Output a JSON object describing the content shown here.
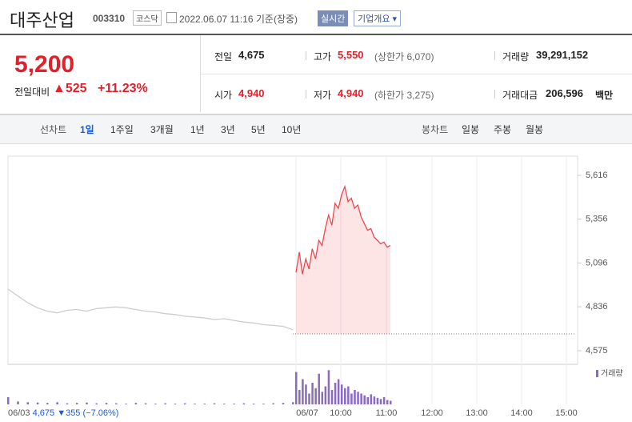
{
  "header": {
    "name": "대주산업",
    "code": "003310",
    "market": "코스닥",
    "time": "2022.06.07 11:16 기준(장중)",
    "realtime": "실시간",
    "overview": "기업개요"
  },
  "price": {
    "current": "5,200",
    "change_label": "전일대비",
    "change": "525",
    "change_pct": "+11.23%"
  },
  "stats": [
    {
      "label": "전일",
      "value": "4,675"
    },
    {
      "label": "고가",
      "value": "5,550",
      "note": "(상한가 6,070)"
    },
    {
      "label": "거래량",
      "value": "39,291,152"
    },
    {
      "label": "시가",
      "value": "4,940"
    },
    {
      "label": "저가",
      "value": "4,940",
      "note": "(하한가 3,275)"
    },
    {
      "label": "거래대금",
      "value": "206,596",
      "unit": "백만"
    }
  ],
  "tabs": {
    "line_label": "선차트",
    "line": [
      "1일",
      "1주일",
      "3개월",
      "1년",
      "3년",
      "5년",
      "10년"
    ],
    "candle_label": "봉차트",
    "candle": [
      "일봉",
      "주봉",
      "월봉"
    ]
  },
  "chart_data": {
    "type": "line",
    "ylim": [
      4575,
      5616
    ],
    "yticks": [
      {
        "value": 5616,
        "label": "5,616"
      },
      {
        "value": 5356,
        "label": "5,356"
      },
      {
        "value": 5096,
        "label": "5,096"
      },
      {
        "value": 4836,
        "label": "4,836"
      },
      {
        "value": 4575,
        "label": "4,575"
      }
    ],
    "x_labels": [
      "06/03",
      "06/07",
      "10:00",
      "11:00",
      "12:00",
      "13:00",
      "14:00",
      "15:00"
    ],
    "prev_close": 4675,
    "series": [
      {
        "name": "06/03",
        "color": "#cccccc",
        "values": [
          4941,
          4900,
          4860,
          4830,
          4810,
          4800,
          4815,
          4820,
          4810,
          4825,
          4830,
          4835,
          4830,
          4820,
          4810,
          4805,
          4795,
          4790,
          4780,
          4775,
          4770,
          4760,
          4765,
          4755,
          4745,
          4740,
          4730,
          4725,
          4720,
          4700
        ]
      },
      {
        "name": "06/07",
        "color": "#f0474f",
        "values": [
          5040,
          5160,
          5030,
          5120,
          5060,
          5180,
          5120,
          5230,
          5200,
          5300,
          5380,
          5320,
          5450,
          5420,
          5500,
          5550,
          5460,
          5480,
          5420,
          5440,
          5370,
          5330,
          5290,
          5300,
          5250,
          5230,
          5210,
          5220,
          5190,
          5200
        ]
      }
    ],
    "prev_summary": {
      "close": "4,675",
      "change": "▼355",
      "change_pct": "(−7.06%)"
    },
    "volume": {
      "label": "거래량",
      "color": "#8a6bbe",
      "ylim": [
        0,
        100
      ],
      "prev": [
        20,
        8,
        6,
        5,
        4,
        6,
        3,
        4,
        5,
        3,
        4,
        3,
        2,
        4,
        3,
        2,
        3,
        2,
        3,
        2,
        2,
        3,
        2,
        2,
        3,
        2,
        2,
        3,
        4,
        6
      ],
      "today": [
        90,
        40,
        70,
        55,
        30,
        60,
        45,
        85,
        35,
        50,
        95,
        40,
        60,
        70,
        55,
        45,
        50,
        30,
        40,
        35,
        30,
        25,
        20,
        28,
        22,
        18,
        15,
        20,
        12,
        10
      ]
    }
  }
}
